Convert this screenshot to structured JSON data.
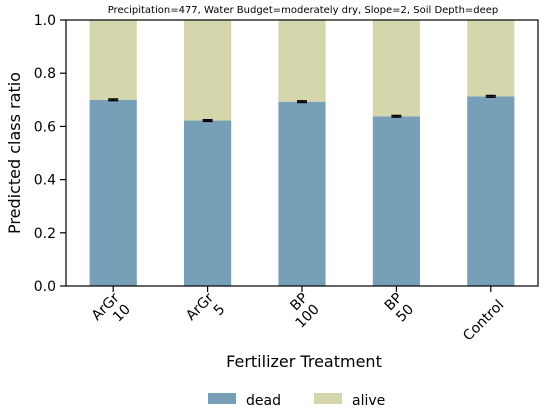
{
  "chart_data": {
    "type": "bar",
    "stacked": true,
    "title": "Precipitation=477, Water Budget=moderately dry, Slope=2, Soil Depth=deep",
    "xlabel": "Fertilizer Treatment",
    "ylabel": "Predicted class ratio",
    "ylim": [
      0,
      1
    ],
    "yticks": [
      "0.0",
      "0.2",
      "0.4",
      "0.6",
      "0.8",
      "1.0"
    ],
    "categories": [
      "ArGr\n10",
      "ArGr\n5",
      "BP\n100",
      "BP\n50",
      "Control"
    ],
    "series": [
      {
        "name": "dead",
        "color": "#779fb8",
        "values": [
          0.7,
          0.622,
          0.693,
          0.638,
          0.713
        ],
        "errors": [
          0.003,
          0.003,
          0.003,
          0.003,
          0.003
        ]
      },
      {
        "name": "alive",
        "color": "#d5d6ab",
        "values": [
          0.3,
          0.378,
          0.307,
          0.362,
          0.287
        ]
      }
    ],
    "legend_position": "bottom",
    "grid": false
  }
}
